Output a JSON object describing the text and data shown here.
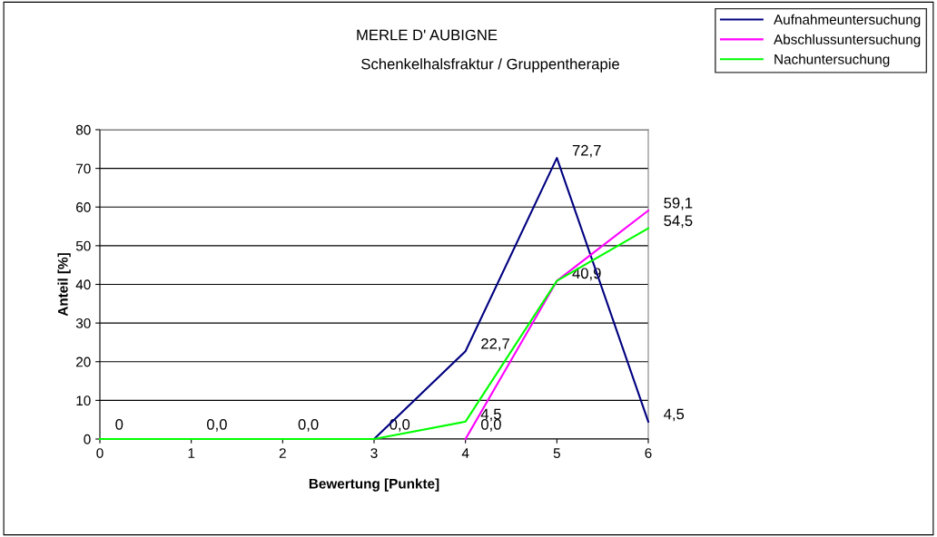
{
  "chart_data": {
    "type": "line",
    "title": "MERLE D' AUBIGNE",
    "subtitle": "Schenkelhalsfraktur / Gruppentherapie",
    "xlabel": "Bewertung [Punkte]",
    "ylabel": "Anteil [%]",
    "x": [
      0,
      1,
      2,
      3,
      4,
      5,
      6
    ],
    "xlim": [
      0,
      6
    ],
    "xticks": [
      0,
      1,
      2,
      3,
      4,
      5,
      6
    ],
    "ylim": [
      0,
      80
    ],
    "yticks": [
      0,
      10,
      20,
      30,
      40,
      50,
      60,
      70,
      80
    ],
    "grid": "y",
    "legend": "top right",
    "marker": "none",
    "line_style": "solid",
    "series": [
      {
        "name": "Aufnahmeuntersuchung",
        "color": "#000080",
        "values": [
          null,
          null,
          null,
          0,
          22.7,
          72.7,
          4.5
        ],
        "value_labels": [
          null,
          null,
          null,
          null,
          "22,7",
          "72,7",
          "4,5"
        ]
      },
      {
        "name": "Abschlussuntersuchung",
        "color": "#ff00ff",
        "values": [
          null,
          null,
          null,
          null,
          0,
          40.9,
          59.1
        ],
        "value_labels": [
          null,
          null,
          null,
          null,
          "0,0",
          null,
          "59,1"
        ]
      },
      {
        "name": "Nachuntersuchung",
        "color": "#00ff00",
        "values": [
          0,
          0,
          0,
          0,
          4.5,
          40.9,
          54.5
        ],
        "value_labels": [
          "0",
          "0,0",
          "0,0",
          "0,0",
          "4,5",
          "40,9",
          "54,5"
        ]
      }
    ]
  }
}
